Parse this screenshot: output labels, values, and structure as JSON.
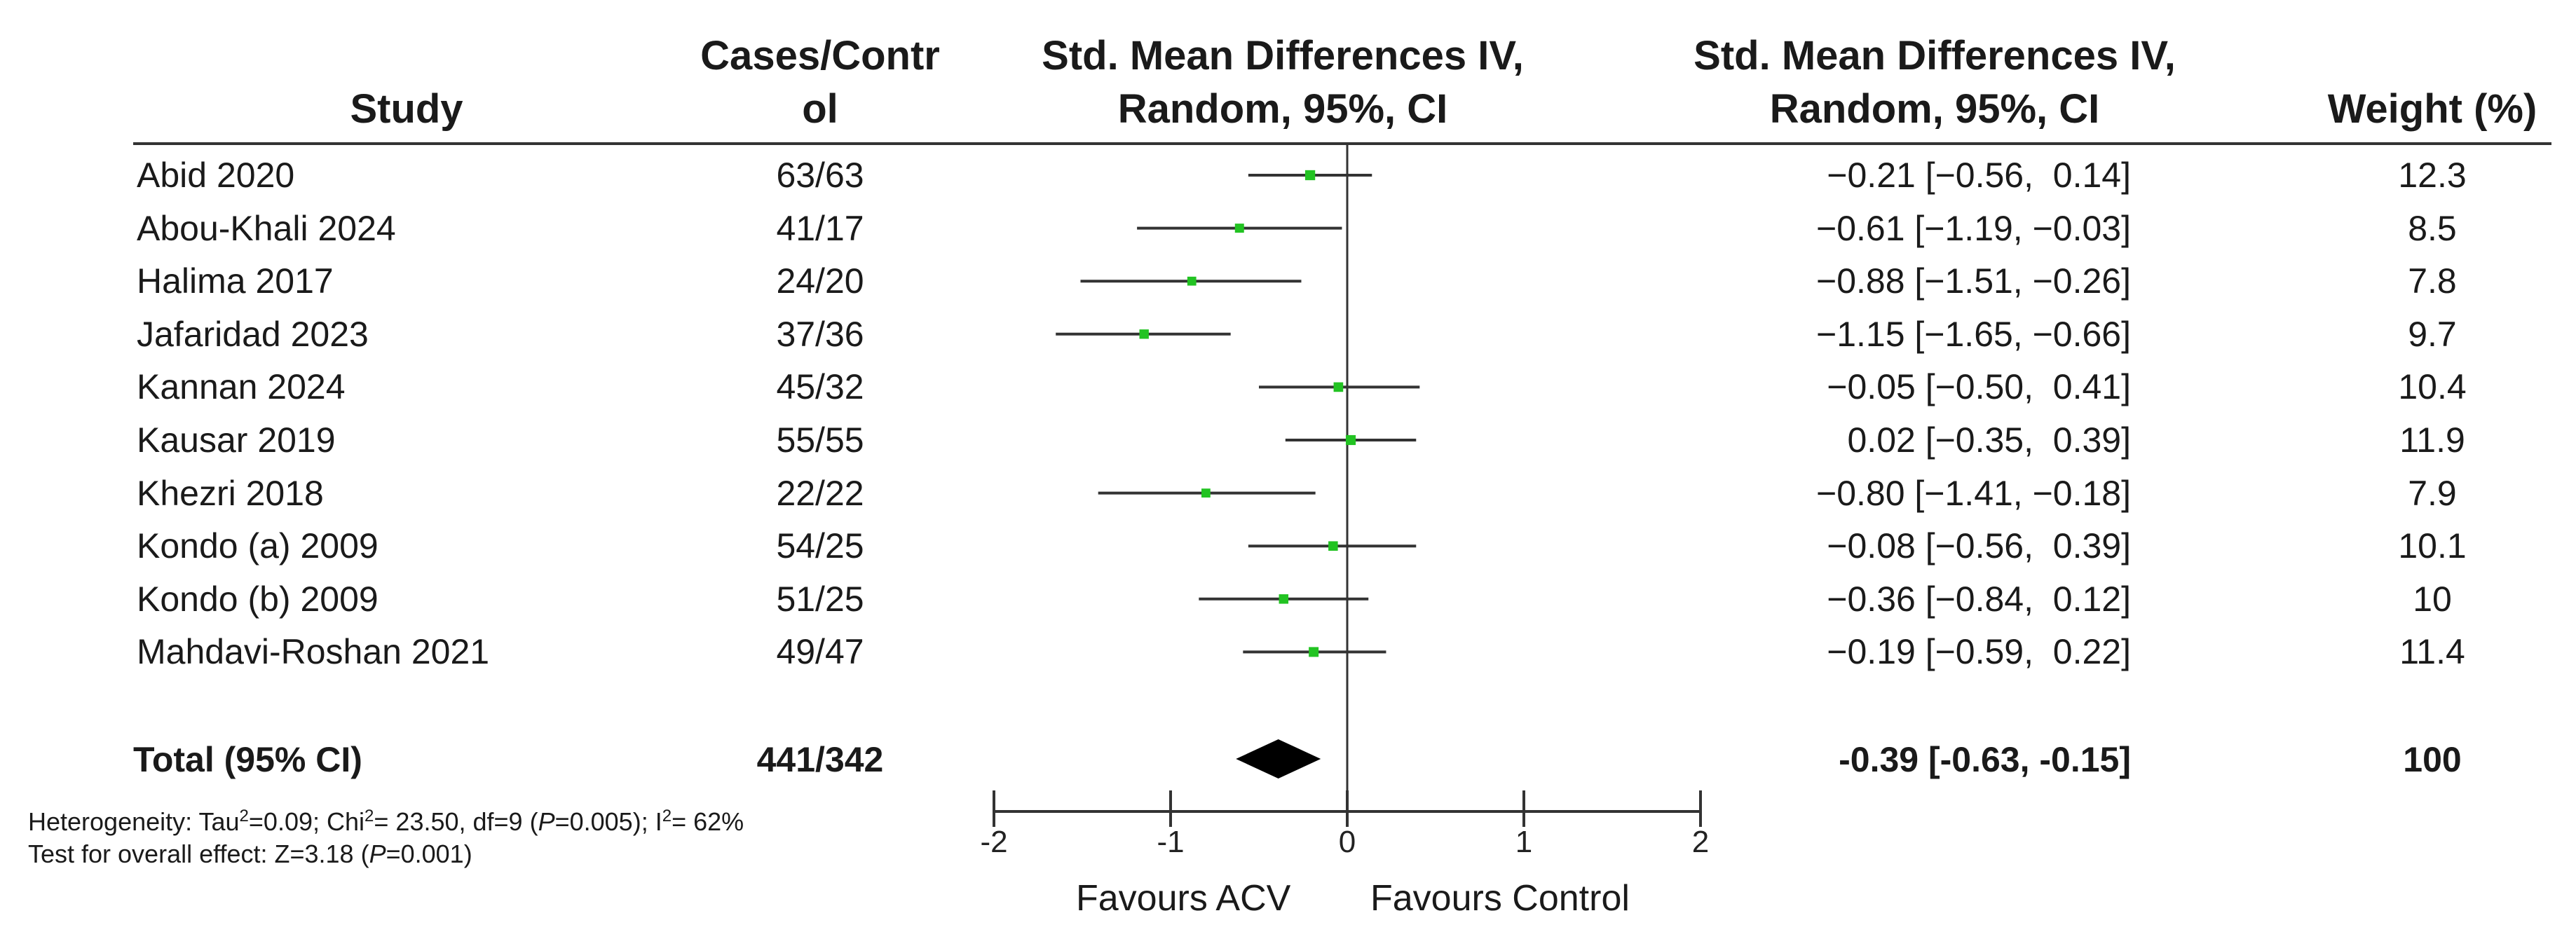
{
  "header": {
    "study": "Study",
    "cases_line1": "Cases/Contr",
    "cases_line2": "ol",
    "smd_plot_line1": "Std. Mean Differences IV,",
    "smd_plot_line2": "Random, 95%, CI",
    "smd_text_line1": "Std. Mean Differences IV,",
    "smd_text_line2": "Random, 95%, CI",
    "weight": "Weight (%)"
  },
  "rows": [
    {
      "study": "Abid 2020",
      "cases": "63/63",
      "ci_text": "−0.21 [−0.56,  0.14]",
      "weight": "12.3"
    },
    {
      "study": "Abou-Khali 2024",
      "cases": "41/17",
      "ci_text": "−0.61 [−1.19, −0.03]",
      "weight": "8.5"
    },
    {
      "study": "Halima 2017",
      "cases": "24/20",
      "ci_text": "−0.88 [−1.51, −0.26]",
      "weight": "7.8"
    },
    {
      "study": "Jafaridad 2023",
      "cases": "37/36",
      "ci_text": "−1.15 [−1.65, −0.66]",
      "weight": "9.7"
    },
    {
      "study": "Kannan 2024",
      "cases": "45/32",
      "ci_text": "−0.05 [−0.50,  0.41]",
      "weight": "10.4"
    },
    {
      "study": "Kausar 2019",
      "cases": "55/55",
      "ci_text": "0.02 [−0.35,  0.39]",
      "weight": "11.9"
    },
    {
      "study": "Khezri 2018",
      "cases": "22/22",
      "ci_text": "−0.80 [−1.41, −0.18]",
      "weight": "7.9"
    },
    {
      "study": "Kondo (a) 2009",
      "cases": "54/25",
      "ci_text": "−0.08 [−0.56,  0.39]",
      "weight": "10.1"
    },
    {
      "study": "Kondo (b) 2009",
      "cases": "51/25",
      "ci_text": "−0.36 [−0.84,  0.12]",
      "weight": "10"
    },
    {
      "study": "Mahdavi-Roshan 2021",
      "cases": "49/47",
      "ci_text": "−0.19 [−0.59,  0.22]",
      "weight": "11.4"
    }
  ],
  "total": {
    "label": "Total (95% CI)",
    "cases": "441/342",
    "ci_text": "-0.39 [-0.63, -0.15]",
    "weight": "100"
  },
  "footnote": {
    "heterogeneity_prefix": "Heterogeneity: Tau",
    "tau_sup": "2",
    "heterogeneity_mid1": "=0.09; Chi",
    "chi_sup": "2",
    "heterogeneity_mid2": "= 23.50, df=9 (",
    "p_italic": "P",
    "heterogeneity_mid3": "=0.005); I",
    "i_sup": "2",
    "heterogeneity_end": "= 62%",
    "overall_prefix": "Test for overall effect: Z=3.18 (",
    "overall_p_italic": "P",
    "overall_end": "=0.001)"
  },
  "favours": {
    "left": "Favours ACV",
    "right": "Favours Control"
  },
  "colors": {
    "marker": "#22c322",
    "line": "#333333",
    "diamond": "#000000"
  },
  "chart_data": {
    "type": "forest",
    "title": "Std. Mean Differences IV, Random, 95%, CI",
    "xlabel_left": "Favours ACV",
    "xlabel_right": "Favours Control",
    "xlim": [
      -2,
      2
    ],
    "xticks": [
      "-2",
      "-1",
      "0",
      "1",
      "2"
    ],
    "xtick_values": [
      -2,
      -1,
      0,
      1,
      2
    ],
    "studies": [
      {
        "name": "Abid 2020",
        "estimate": -0.21,
        "lower": -0.56,
        "upper": 0.14,
        "weight": 12.3
      },
      {
        "name": "Abou-Khali 2024",
        "estimate": -0.61,
        "lower": -1.19,
        "upper": -0.03,
        "weight": 8.5
      },
      {
        "name": "Halima 2017",
        "estimate": -0.88,
        "lower": -1.51,
        "upper": -0.26,
        "weight": 7.8
      },
      {
        "name": "Jafaridad 2023",
        "estimate": -1.15,
        "lower": -1.65,
        "upper": -0.66,
        "weight": 9.7
      },
      {
        "name": "Kannan 2024",
        "estimate": -0.05,
        "lower": -0.5,
        "upper": 0.41,
        "weight": 10.4
      },
      {
        "name": "Kausar 2019",
        "estimate": 0.02,
        "lower": -0.35,
        "upper": 0.39,
        "weight": 11.9
      },
      {
        "name": "Khezri 2018",
        "estimate": -0.8,
        "lower": -1.41,
        "upper": -0.18,
        "weight": 7.9
      },
      {
        "name": "Kondo (a) 2009",
        "estimate": -0.08,
        "lower": -0.56,
        "upper": 0.39,
        "weight": 10.1
      },
      {
        "name": "Kondo (b) 2009",
        "estimate": -0.36,
        "lower": -0.84,
        "upper": 0.12,
        "weight": 10.0
      },
      {
        "name": "Mahdavi-Roshan 2021",
        "estimate": -0.19,
        "lower": -0.59,
        "upper": 0.22,
        "weight": 11.4
      }
    ],
    "pooled": {
      "estimate": -0.39,
      "lower": -0.63,
      "upper": -0.15,
      "weight": 100
    }
  }
}
